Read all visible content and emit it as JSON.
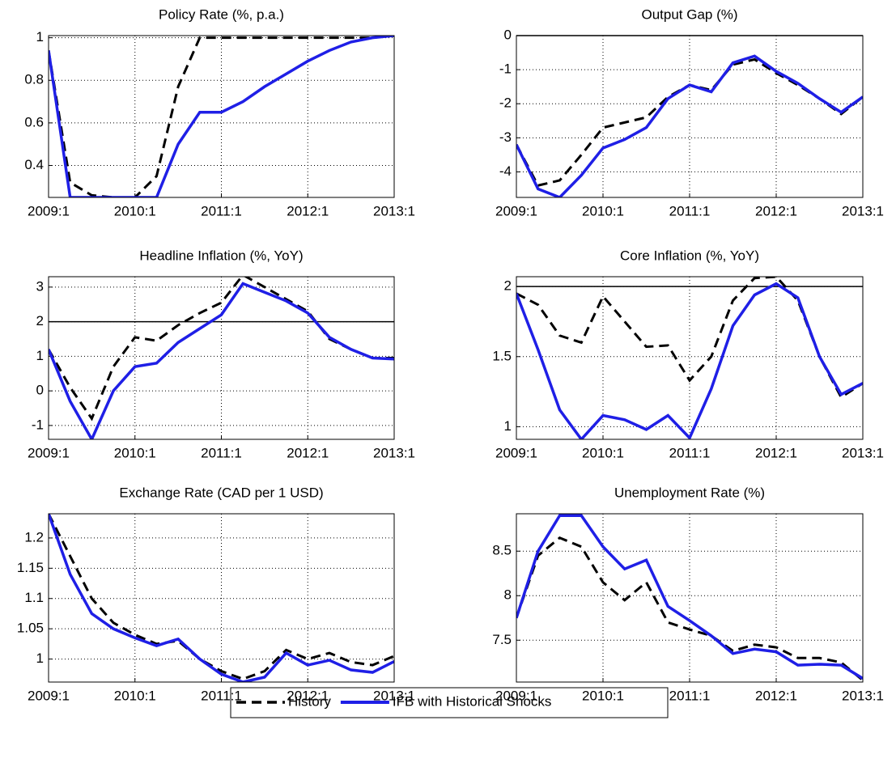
{
  "chart_data": [
    {
      "type": "line",
      "title": "Policy Rate (%, p.a.)",
      "categories": [
        "2009:1",
        null,
        null,
        null,
        "2010:1",
        null,
        null,
        null,
        "2011:1",
        null,
        null,
        null,
        "2012:1",
        null,
        null,
        null,
        "2013:1"
      ],
      "ylim": [
        0.25,
        1.01
      ],
      "yticks": [
        0.4,
        0.6,
        0.8,
        1
      ],
      "grid": true,
      "series": [
        {
          "name": "History",
          "color": "#000000",
          "dash": true,
          "values": [
            0.94,
            0.32,
            0.26,
            0.25,
            0.25,
            0.35,
            0.77,
            1.0,
            1.0,
            1.0,
            1.0,
            1.0,
            1.0,
            1.0,
            1.0,
            1.0,
            1.01
          ]
        },
        {
          "name": "IFB with Historical Shocks",
          "color": "#1f1fe6",
          "dash": false,
          "values": [
            0.94,
            0.25,
            0.25,
            0.25,
            0.25,
            0.25,
            0.5,
            0.65,
            0.65,
            0.7,
            0.77,
            0.83,
            0.89,
            0.94,
            0.98,
            1.0,
            1.01
          ]
        }
      ]
    },
    {
      "type": "line",
      "title": "Output Gap (%)",
      "categories": [
        "2009:1",
        null,
        null,
        null,
        "2010:1",
        null,
        null,
        null,
        "2011:1",
        null,
        null,
        null,
        "2012:1",
        null,
        null,
        null,
        "2013:1"
      ],
      "ylim": [
        -4.75,
        0
      ],
      "yticks": [
        -4,
        -3,
        -2,
        -1,
        0
      ],
      "grid": true,
      "hline": 0,
      "series": [
        {
          "color": "#000000",
          "dash": true,
          "values": [
            -3.2,
            -4.4,
            -4.25,
            -3.5,
            -2.7,
            -2.55,
            -2.4,
            -1.8,
            -1.45,
            -1.6,
            -0.85,
            -0.7,
            -1.1,
            -1.45,
            -1.85,
            -2.3,
            -1.8
          ]
        },
        {
          "color": "#1f1fe6",
          "dash": false,
          "values": [
            -3.2,
            -4.5,
            -4.75,
            -4.1,
            -3.3,
            -3.05,
            -2.7,
            -1.85,
            -1.45,
            -1.65,
            -0.8,
            -0.6,
            -1.05,
            -1.4,
            -1.85,
            -2.25,
            -1.8
          ]
        }
      ]
    },
    {
      "type": "line",
      "title": "Headline Inflation (%, YoY)",
      "categories": [
        "2009:1",
        null,
        null,
        null,
        "2010:1",
        null,
        null,
        null,
        "2011:1",
        null,
        null,
        null,
        "2012:1",
        null,
        null,
        null,
        "2013:1"
      ],
      "ylim": [
        -1.4,
        3.3
      ],
      "yticks": [
        -1,
        0,
        1,
        2,
        3
      ],
      "grid": true,
      "hline": 2,
      "series": [
        {
          "color": "#000000",
          "dash": true,
          "values": [
            1.2,
            0.1,
            -0.8,
            0.7,
            1.55,
            1.45,
            1.9,
            2.25,
            2.55,
            3.35,
            3.0,
            2.65,
            2.3,
            1.5,
            1.2,
            0.95,
            0.95
          ]
        },
        {
          "color": "#1f1fe6",
          "dash": false,
          "values": [
            1.2,
            -0.3,
            -1.4,
            0.0,
            0.7,
            0.8,
            1.4,
            1.8,
            2.2,
            3.1,
            2.85,
            2.6,
            2.25,
            1.55,
            1.2,
            0.95,
            0.92
          ]
        }
      ]
    },
    {
      "type": "line",
      "title": "Core Inflation (%, YoY)",
      "categories": [
        "2009:1",
        null,
        null,
        null,
        "2010:1",
        null,
        null,
        null,
        "2011:1",
        null,
        null,
        null,
        "2012:1",
        null,
        null,
        null,
        "2013:1"
      ],
      "ylim": [
        0.91,
        2.07
      ],
      "yticks": [
        1,
        1.5,
        2
      ],
      "grid": true,
      "hline": 2,
      "series": [
        {
          "color": "#000000",
          "dash": true,
          "values": [
            1.95,
            1.87,
            1.65,
            1.6,
            1.93,
            1.75,
            1.57,
            1.58,
            1.33,
            1.5,
            1.9,
            2.06,
            2.07,
            1.9,
            1.5,
            1.21,
            1.31
          ]
        },
        {
          "color": "#1f1fe6",
          "dash": false,
          "values": [
            1.95,
            1.55,
            1.12,
            0.91,
            1.08,
            1.05,
            0.98,
            1.08,
            0.92,
            1.27,
            1.72,
            1.94,
            2.02,
            1.92,
            1.5,
            1.23,
            1.31
          ]
        }
      ]
    },
    {
      "type": "line",
      "title": "Exchange Rate (CAD per 1 USD)",
      "categories": [
        "2009:1",
        null,
        null,
        null,
        "2010:1",
        null,
        null,
        null,
        "2011:1",
        null,
        null,
        null,
        "2012:1",
        null,
        null,
        null,
        "2013:1"
      ],
      "ylim": [
        0.962,
        1.24
      ],
      "yticks": [
        1,
        1.05,
        1.1,
        1.15,
        1.2
      ],
      "grid": true,
      "series": [
        {
          "color": "#000000",
          "dash": true,
          "values": [
            1.24,
            1.17,
            1.1,
            1.06,
            1.04,
            1.025,
            1.03,
            1.0,
            0.98,
            0.967,
            0.98,
            1.015,
            1.0,
            1.01,
            0.995,
            0.99,
            1.005
          ]
        },
        {
          "color": "#1f1fe6",
          "dash": false,
          "values": [
            1.24,
            1.14,
            1.075,
            1.05,
            1.035,
            1.022,
            1.033,
            1.0,
            0.975,
            0.962,
            0.97,
            1.01,
            0.99,
            0.998,
            0.982,
            0.978,
            0.996
          ]
        }
      ]
    },
    {
      "type": "line",
      "title": "Unemployment Rate (%)",
      "categories": [
        "2009:1",
        null,
        null,
        null,
        "2010:1",
        null,
        null,
        null,
        "2011:1",
        null,
        null,
        null,
        "2012:1",
        null,
        null,
        null,
        "2013:1"
      ],
      "ylim": [
        7.03,
        8.92
      ],
      "yticks": [
        7.5,
        8,
        8.5
      ],
      "grid": true,
      "series": [
        {
          "color": "#000000",
          "dash": true,
          "values": [
            7.75,
            8.45,
            8.65,
            8.55,
            8.15,
            7.95,
            8.15,
            7.7,
            7.62,
            7.55,
            7.38,
            7.45,
            7.42,
            7.3,
            7.3,
            7.25,
            7.05
          ]
        },
        {
          "color": "#1f1fe6",
          "dash": false,
          "values": [
            7.75,
            8.5,
            8.9,
            8.9,
            8.55,
            8.3,
            8.4,
            7.88,
            7.72,
            7.55,
            7.35,
            7.4,
            7.37,
            7.22,
            7.23,
            7.22,
            7.07
          ]
        }
      ]
    }
  ]
}
